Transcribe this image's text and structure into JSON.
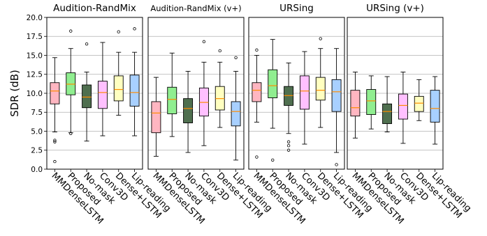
{
  "chart_data": {
    "type": "box",
    "ylabel": "SDR (dB)",
    "ylim": [
      0,
      20
    ],
    "yticks": [
      "0.0",
      "2.5",
      "5.0",
      "7.5",
      "10.0",
      "12.5",
      "15.0",
      "17.5",
      "20.0"
    ],
    "grid": "horizontal",
    "categories": [
      "MMDenseLSTM",
      "Proposed",
      "No-mask",
      "Conv3D",
      "Dense+LSTM",
      "Lip-reading"
    ],
    "colors": [
      "#ffb6c1",
      "#90ee90",
      "#4f6f4f",
      "#ffc0ff",
      "#ffffc0",
      "#a8d0ff"
    ],
    "panels": [
      {
        "title": "Audition-RandMix",
        "boxes": [
          {
            "whislo": 4.9,
            "q1": 8.6,
            "med": 10.3,
            "q3": 11.4,
            "whishi": 14.7,
            "fliers": [
              3.8,
              3.6,
              1.0
            ]
          },
          {
            "whislo": 4.8,
            "q1": 9.8,
            "med": 11.2,
            "q3": 12.7,
            "whishi": 15.9,
            "fliers": [
              18.2,
              4.7
            ]
          },
          {
            "whislo": 3.7,
            "q1": 8.1,
            "med": 9.5,
            "q3": 11.1,
            "whishi": 12.8,
            "fliers": [
              16.5
            ]
          },
          {
            "whislo": 4.4,
            "q1": 8.0,
            "med": 10.1,
            "q3": 11.6,
            "whishi": 16.7,
            "fliers": []
          },
          {
            "whislo": 7.1,
            "q1": 9.0,
            "med": 10.5,
            "q3": 12.3,
            "whishi": 15.4,
            "fliers": [
              18.1
            ]
          },
          {
            "whislo": 4.4,
            "q1": 8.3,
            "med": 10.1,
            "q3": 12.4,
            "whishi": 15.4,
            "fliers": [
              18.5
            ]
          }
        ]
      },
      {
        "title": "Audition-RandMix (v+)",
        "boxes": [
          {
            "whislo": 1.7,
            "q1": 4.8,
            "med": 7.4,
            "q3": 8.9,
            "whishi": 12.1,
            "fliers": []
          },
          {
            "whislo": 4.3,
            "q1": 7.3,
            "med": 9.2,
            "q3": 10.8,
            "whishi": 15.3,
            "fliers": []
          },
          {
            "whislo": 2.2,
            "q1": 6.1,
            "med": 8.0,
            "q3": 9.3,
            "whishi": 12.9,
            "fliers": []
          },
          {
            "whislo": 3.1,
            "q1": 7.0,
            "med": 8.8,
            "q3": 10.7,
            "whishi": 14.1,
            "fliers": [
              16.8
            ]
          },
          {
            "whislo": 5.5,
            "q1": 7.8,
            "med": 9.3,
            "q3": 10.9,
            "whishi": 14.1,
            "fliers": [
              15.6
            ]
          },
          {
            "whislo": 1.2,
            "q1": 5.7,
            "med": 7.6,
            "q3": 8.9,
            "whishi": 12.9,
            "fliers": [
              14.7
            ]
          }
        ]
      },
      {
        "title": "URSing",
        "boxes": [
          {
            "whislo": 6.2,
            "q1": 8.9,
            "med": 10.4,
            "q3": 11.4,
            "whishi": 15.0,
            "fliers": [
              15.7,
              1.6
            ]
          },
          {
            "whislo": 5.4,
            "q1": 9.4,
            "med": 11.0,
            "q3": 13.1,
            "whishi": 17.1,
            "fliers": [
              1.2
            ]
          },
          {
            "whislo": 4.7,
            "q1": 8.4,
            "med": 9.7,
            "q3": 10.9,
            "whishi": 14.0,
            "fliers": [
              3.6,
              3.1,
              2.5
            ]
          },
          {
            "whislo": 3.3,
            "q1": 7.9,
            "med": 10.3,
            "q3": 12.3,
            "whishi": 15.5,
            "fliers": []
          },
          {
            "whislo": 5.5,
            "q1": 9.1,
            "med": 10.4,
            "q3": 12.1,
            "whishi": 15.9,
            "fliers": [
              17.2
            ]
          },
          {
            "whislo": 2.2,
            "q1": 7.6,
            "med": 10.2,
            "q3": 11.8,
            "whishi": 15.9,
            "fliers": [
              0.6
            ]
          }
        ]
      },
      {
        "title": "URSing (v+)",
        "boxes": [
          {
            "whislo": 4.1,
            "q1": 7.0,
            "med": 8.1,
            "q3": 10.4,
            "whishi": 12.8,
            "fliers": []
          },
          {
            "whislo": 5.3,
            "q1": 7.2,
            "med": 9.0,
            "q3": 10.5,
            "whishi": 12.3,
            "fliers": []
          },
          {
            "whislo": 4.9,
            "q1": 6.0,
            "med": 7.6,
            "q3": 8.6,
            "whishi": 12.2,
            "fliers": []
          },
          {
            "whislo": 3.4,
            "q1": 6.6,
            "med": 8.4,
            "q3": 9.9,
            "whishi": 12.8,
            "fliers": []
          },
          {
            "whislo": 6.4,
            "q1": 7.6,
            "med": 8.7,
            "q3": 9.6,
            "whishi": 11.8,
            "fliers": []
          },
          {
            "whislo": 3.3,
            "q1": 6.2,
            "med": 8.0,
            "q3": 10.4,
            "whishi": 12.2,
            "fliers": []
          }
        ]
      }
    ]
  }
}
